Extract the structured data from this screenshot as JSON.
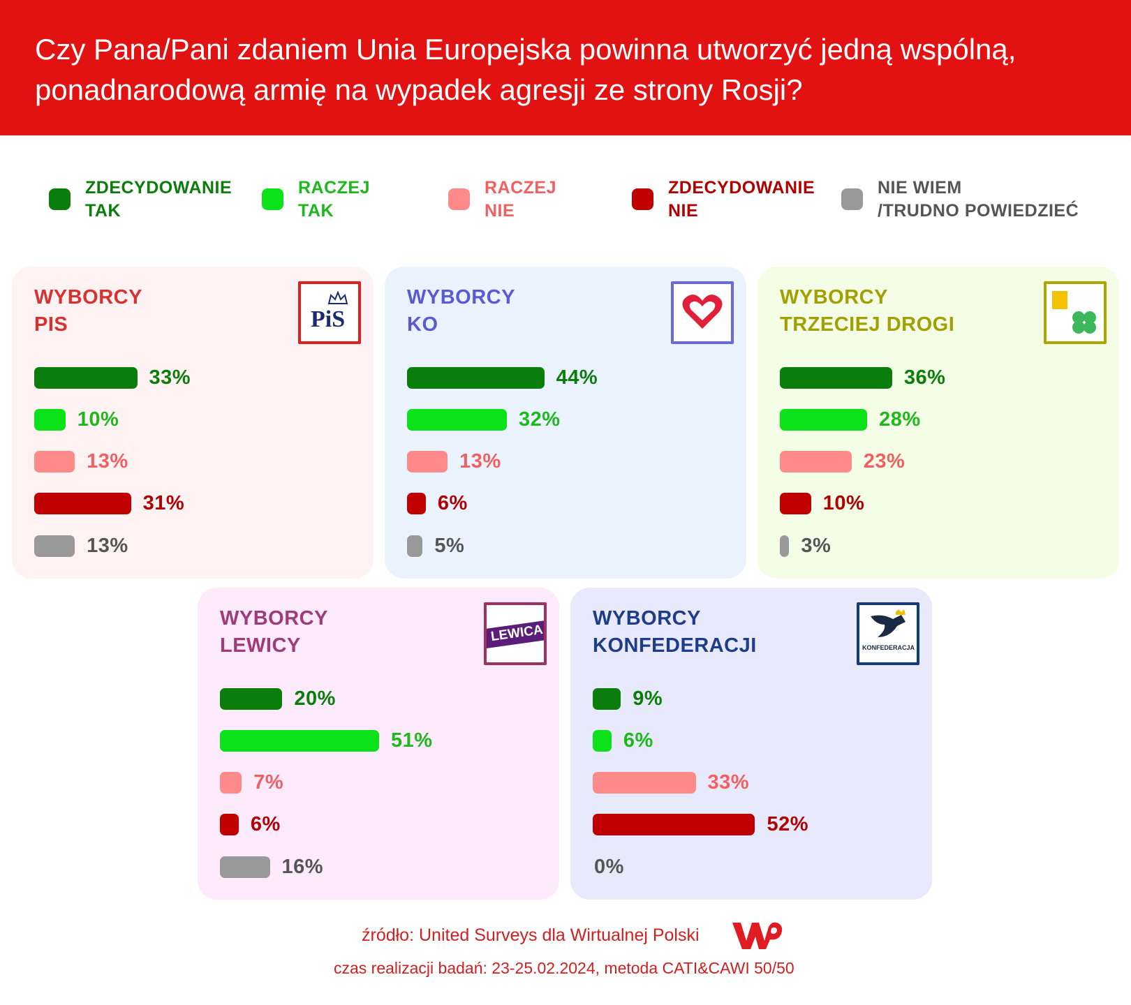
{
  "title": "Czy Pana/Pani zdaniem Unia Europejska powinna utworzyć jedną wspólną,\nponadnarodową armię na wypadek agresji ze strony Rosji?",
  "legend": [
    {
      "name": "ZDECYDOWANIE\nTAK",
      "color": "#0a7d0a",
      "text_color": "#0a7d0a"
    },
    {
      "name": "RACZEJ\nTAK",
      "color": "#0be21a",
      "text_color": "#1cb81c"
    },
    {
      "name": "RACZEJ\nNIE",
      "color": "#ff8a8a",
      "text_color": "#f06060"
    },
    {
      "name": "ZDECYDOWANIE\nNIE",
      "color": "#c00000",
      "text_color": "#b00000"
    },
    {
      "name": "NIE WIEM\n/TRUDNO POWIEDZIEĆ",
      "color": "#999999",
      "text_color": "#555555"
    }
  ],
  "chart_data": [
    {
      "type": "bar",
      "title": "WYBORCY\nPIS",
      "logo": "PiS",
      "background": "#fff2f2",
      "title_color": "#d93030",
      "values": [
        33,
        10,
        13,
        31,
        13
      ],
      "value_labels": [
        "33%",
        "10%",
        "13%",
        "31%",
        "13%"
      ]
    },
    {
      "type": "bar",
      "title": "WYBORCY\nKO",
      "background": "#eaf3ff",
      "title_color": "#5a5ad6",
      "values": [
        44,
        32,
        13,
        6,
        5
      ],
      "value_labels": [
        "44%",
        "32%",
        "13%",
        "6%",
        "5%"
      ]
    },
    {
      "type": "bar",
      "title": "WYBORCY\nTRZECIEJ DROGI",
      "background": "#f4fde6",
      "title_color": "#a0a000",
      "values": [
        36,
        28,
        23,
        10,
        3
      ],
      "value_labels": [
        "36%",
        "28%",
        "23%",
        "10%",
        "3%"
      ]
    },
    {
      "type": "bar",
      "title": "WYBORCY\nLEWICY",
      "logo": "LEWICA",
      "background": "#fdeafc",
      "title_color": "#a03a78",
      "values": [
        20,
        51,
        7,
        6,
        16
      ],
      "value_labels": [
        "20%",
        "51%",
        "7%",
        "6%",
        "16%"
      ]
    },
    {
      "type": "bar",
      "title": "WYBORCY\nKONFEDERACJI",
      "logo": "KONFEDERACJA",
      "background": "#e8eafc",
      "title_color": "#1e3c8c",
      "values": [
        9,
        6,
        33,
        52,
        0
      ],
      "value_labels": [
        "9%",
        "6%",
        "33%",
        "52%",
        "0%"
      ]
    }
  ],
  "source": "źródło: United Surveys dla Wirtualnej Polski",
  "note": "czas realizacji badań: 23-25.02.2024, metoda CATI&CAWI 50/50"
}
